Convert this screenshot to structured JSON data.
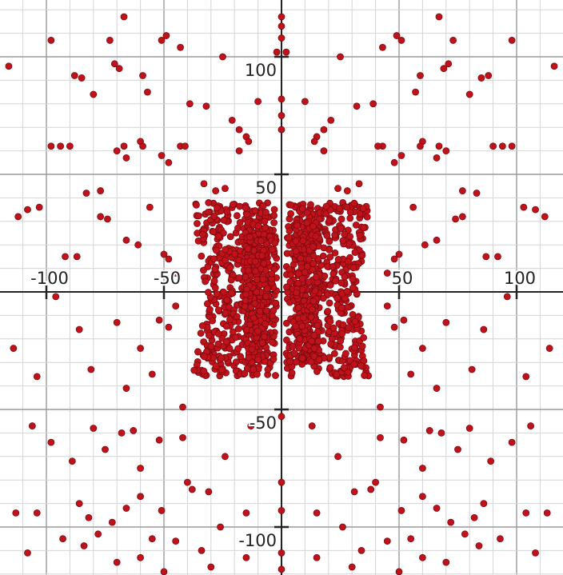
{
  "chart_data": {
    "type": "scatter",
    "title": "",
    "xlabel": "",
    "ylabel": "",
    "xlim": [
      -119,
      119
    ],
    "ylim": [
      -120,
      120
    ],
    "grid": {
      "on": true,
      "minor_step": 10,
      "major_step": 50
    },
    "axes_style": "cartesian-cross",
    "x_ticks": [
      {
        "value": -100,
        "label": "-100"
      },
      {
        "value": -50,
        "label": "-50"
      },
      {
        "value": 50,
        "label": "50"
      },
      {
        "value": 100,
        "label": "100"
      }
    ],
    "y_ticks": [
      {
        "value": 100,
        "label": "100"
      },
      {
        "value": 50,
        "label": "50"
      },
      {
        "value": -50,
        "label": "-50"
      },
      {
        "value": -100,
        "label": "-100"
      }
    ],
    "point_color": "#c0121b",
    "point_edge_color": "#7a0a10",
    "accent_point_color": "#3a1fb0",
    "series": [
      {
        "points": [
          [
            -116,
            96
          ],
          [
            -98,
            107
          ],
          [
            -88,
            92
          ],
          [
            -85,
            91
          ],
          [
            -80,
            84
          ],
          [
            -73,
            107
          ],
          [
            -71,
            97
          ],
          [
            -69,
            95
          ],
          [
            -67,
            117
          ],
          [
            -59,
            92
          ],
          [
            -57,
            85
          ],
          [
            -51,
            107
          ],
          [
            -49,
            109
          ],
          [
            -43,
            104
          ],
          [
            -39,
            80
          ],
          [
            -32,
            79
          ],
          [
            -25,
            100
          ],
          [
            -21,
            73
          ],
          [
            -18,
            69
          ],
          [
            -15,
            66
          ],
          [
            -14,
            64
          ],
          [
            -10,
            81
          ],
          [
            -2,
            102
          ],
          [
            0,
            117
          ],
          [
            0,
            113
          ],
          [
            0,
            108
          ],
          [
            0,
            82
          ],
          [
            0,
            75
          ],
          [
            0,
            69
          ],
          [
            116,
            96
          ],
          [
            98,
            107
          ],
          [
            88,
            92
          ],
          [
            85,
            91
          ],
          [
            80,
            84
          ],
          [
            73,
            107
          ],
          [
            71,
            97
          ],
          [
            69,
            95
          ],
          [
            67,
            117
          ],
          [
            59,
            92
          ],
          [
            57,
            85
          ],
          [
            51,
            107
          ],
          [
            49,
            109
          ],
          [
            43,
            104
          ],
          [
            39,
            80
          ],
          [
            32,
            79
          ],
          [
            25,
            100
          ],
          [
            21,
            73
          ],
          [
            18,
            69
          ],
          [
            15,
            66
          ],
          [
            14,
            64
          ],
          [
            10,
            81
          ],
          [
            2,
            102
          ],
          [
            -98,
            62
          ],
          [
            -94,
            62
          ],
          [
            -90,
            62
          ],
          [
            -83,
            42
          ],
          [
            -77,
            43
          ],
          [
            -70,
            60
          ],
          [
            -67,
            62
          ],
          [
            -66,
            57
          ],
          [
            -60,
            64
          ],
          [
            -59,
            62
          ],
          [
            -51,
            58
          ],
          [
            -48,
            55
          ],
          [
            -43,
            62
          ],
          [
            -41,
            62
          ],
          [
            -33,
            46
          ],
          [
            -28,
            43
          ],
          [
            -24,
            44
          ],
          [
            -18,
            60
          ],
          [
            98,
            62
          ],
          [
            94,
            62
          ],
          [
            90,
            62
          ],
          [
            83,
            42
          ],
          [
            77,
            43
          ],
          [
            70,
            60
          ],
          [
            67,
            62
          ],
          [
            66,
            57
          ],
          [
            60,
            64
          ],
          [
            59,
            62
          ],
          [
            51,
            58
          ],
          [
            48,
            55
          ],
          [
            43,
            62
          ],
          [
            41,
            62
          ],
          [
            33,
            46
          ],
          [
            28,
            43
          ],
          [
            24,
            44
          ],
          [
            18,
            60
          ],
          [
            -112,
            32
          ],
          [
            -108,
            35
          ],
          [
            -103,
            36
          ],
          [
            -92,
            15
          ],
          [
            -87,
            15
          ],
          [
            -77,
            32
          ],
          [
            -74,
            31
          ],
          [
            -66,
            22
          ],
          [
            -61,
            20
          ],
          [
            -56,
            36
          ],
          [
            -50,
            16
          ],
          [
            -48,
            14
          ],
          [
            -45,
            8
          ],
          [
            112,
            32
          ],
          [
            108,
            35
          ],
          [
            103,
            36
          ],
          [
            92,
            15
          ],
          [
            87,
            15
          ],
          [
            77,
            32
          ],
          [
            74,
            31
          ],
          [
            66,
            22
          ],
          [
            61,
            20
          ],
          [
            56,
            36
          ],
          [
            50,
            16
          ],
          [
            48,
            14
          ],
          [
            45,
            8
          ],
          [
            -114,
            -24
          ],
          [
            -104,
            -36
          ],
          [
            -96,
            -2
          ],
          [
            -86,
            -16
          ],
          [
            -81,
            -33
          ],
          [
            -70,
            -13
          ],
          [
            -66,
            -41
          ],
          [
            -60,
            -24
          ],
          [
            -55,
            -35
          ],
          [
            -52,
            -12
          ],
          [
            -48,
            -15
          ],
          [
            -45,
            -6
          ],
          [
            -42,
            -49
          ],
          [
            114,
            -24
          ],
          [
            104,
            -36
          ],
          [
            96,
            -2
          ],
          [
            86,
            -16
          ],
          [
            81,
            -33
          ],
          [
            70,
            -13
          ],
          [
            66,
            -41
          ],
          [
            60,
            -24
          ],
          [
            55,
            -35
          ],
          [
            52,
            -12
          ],
          [
            48,
            -15
          ],
          [
            45,
            -6
          ],
          [
            42,
            -49
          ],
          [
            -106,
            -57
          ],
          [
            -98,
            -64
          ],
          [
            -89,
            -72
          ],
          [
            -80,
            -58
          ],
          [
            -75,
            -67
          ],
          [
            -68,
            -60
          ],
          [
            -63,
            -59
          ],
          [
            -60,
            -75
          ],
          [
            -52,
            -63
          ],
          [
            -42,
            -62
          ],
          [
            -40,
            -81
          ],
          [
            -31,
            -85
          ],
          [
            -24,
            -70
          ],
          [
            -13,
            -57
          ],
          [
            0,
            -53
          ],
          [
            0,
            -81
          ],
          [
            106,
            -57
          ],
          [
            98,
            -64
          ],
          [
            89,
            -72
          ],
          [
            80,
            -58
          ],
          [
            75,
            -67
          ],
          [
            68,
            -60
          ],
          [
            63,
            -59
          ],
          [
            60,
            -75
          ],
          [
            52,
            -63
          ],
          [
            42,
            -62
          ],
          [
            40,
            -81
          ],
          [
            31,
            -85
          ],
          [
            24,
            -70
          ],
          [
            13,
            -57
          ],
          [
            -113,
            -94
          ],
          [
            -104,
            -94
          ],
          [
            -93,
            -105
          ],
          [
            -86,
            -90
          ],
          [
            -82,
            -96
          ],
          [
            -78,
            -103
          ],
          [
            -72,
            -98
          ],
          [
            -66,
            -92
          ],
          [
            -60,
            -87
          ],
          [
            -55,
            -105
          ],
          [
            -51,
            -93
          ],
          [
            -45,
            -106
          ],
          [
            -38,
            -84
          ],
          [
            -34,
            -110
          ],
          [
            -26,
            -100
          ],
          [
            -15,
            -94
          ],
          [
            0,
            -93
          ],
          [
            0,
            -111
          ],
          [
            0,
            -118
          ],
          [
            113,
            -94
          ],
          [
            104,
            -94
          ],
          [
            93,
            -105
          ],
          [
            86,
            -90
          ],
          [
            82,
            -96
          ],
          [
            78,
            -103
          ],
          [
            72,
            -98
          ],
          [
            66,
            -92
          ],
          [
            60,
            -87
          ],
          [
            55,
            -105
          ],
          [
            51,
            -93
          ],
          [
            45,
            -106
          ],
          [
            38,
            -84
          ],
          [
            34,
            -110
          ],
          [
            26,
            -100
          ],
          [
            15,
            -94
          ],
          [
            -108,
            -111
          ],
          [
            -84,
            -108
          ],
          [
            -70,
            -115
          ],
          [
            -60,
            -113
          ],
          [
            -50,
            -119
          ],
          [
            -30,
            -117
          ],
          [
            -15,
            -113
          ],
          [
            108,
            -111
          ],
          [
            84,
            -108
          ],
          [
            70,
            -115
          ],
          [
            60,
            -113
          ],
          [
            50,
            -119
          ],
          [
            30,
            -117
          ],
          [
            15,
            -113
          ]
        ]
      }
    ],
    "clusters": [
      {
        "x_range": [
          -38,
          -2
        ],
        "y_range": [
          -36,
          38
        ],
        "density": 0.9,
        "shape": "bowtie"
      },
      {
        "x_range": [
          2,
          38
        ],
        "y_range": [
          -36,
          38
        ],
        "density": 0.9,
        "shape": "bowtie"
      },
      {
        "x_range": [
          -16,
          -6
        ],
        "y_range": [
          -30,
          30
        ],
        "density": 1.0,
        "shape": "band"
      },
      {
        "x_range": [
          6,
          16
        ],
        "y_range": [
          -30,
          30
        ],
        "density": 1.0,
        "shape": "band"
      }
    ]
  }
}
